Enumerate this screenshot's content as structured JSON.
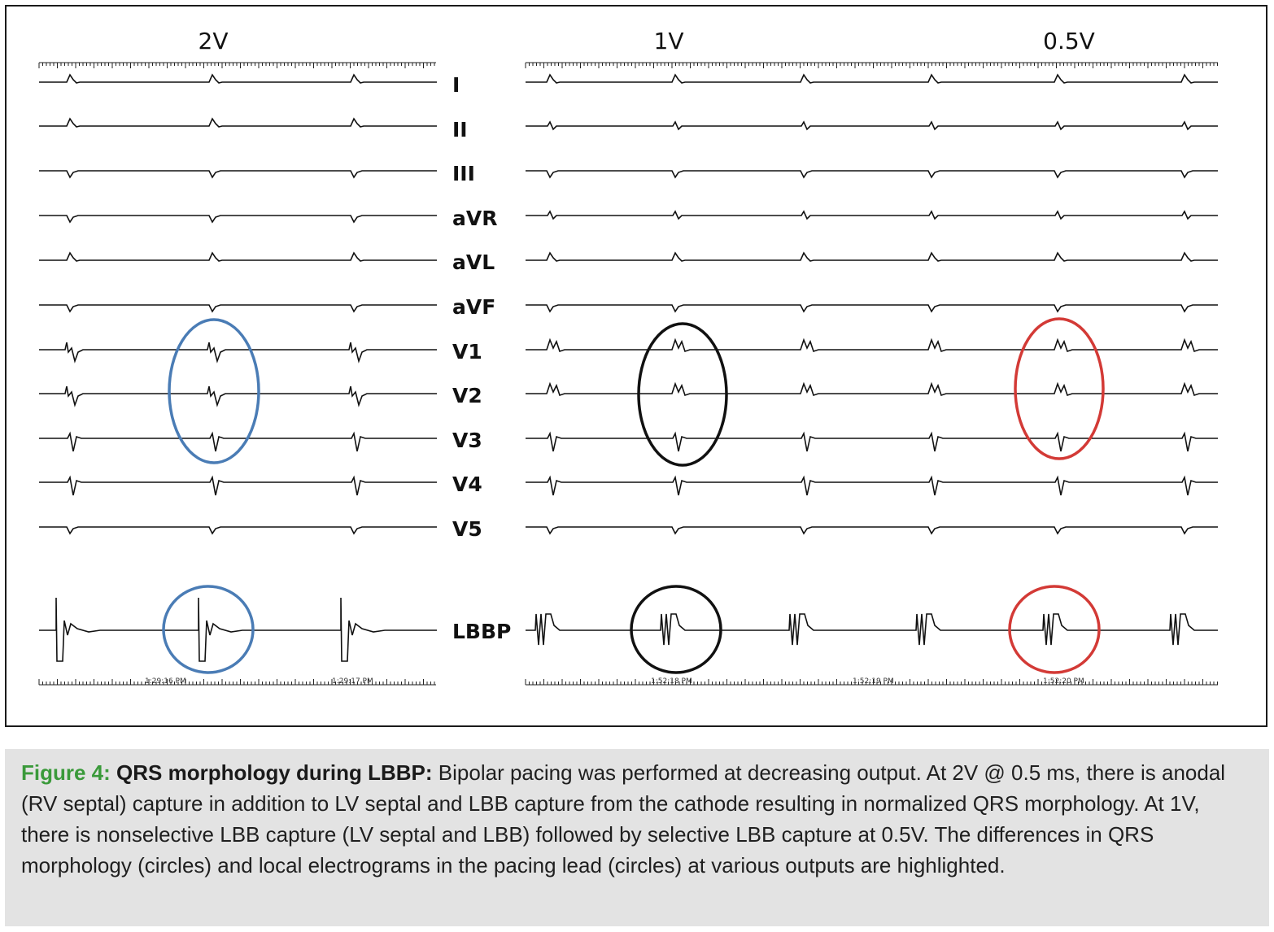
{
  "panels": [
    {
      "id": "left",
      "voltage_labels": [
        "2V"
      ],
      "timestamps": [
        "1:29:16 PM",
        "1:29:17 PM"
      ]
    },
    {
      "id": "right",
      "voltage_labels": [
        "1V",
        "0.5V"
      ],
      "timestamps": [
        "1:52:18 PM",
        "1:52:19 PM",
        "1:52:20 PM"
      ]
    }
  ],
  "leads": [
    "I",
    "II",
    "III",
    "aVR",
    "aVL",
    "aVF",
    "V1",
    "V2",
    "V3",
    "V4",
    "V5",
    "LBBP"
  ],
  "circles": [
    {
      "region": "2V surface leads V1-V3",
      "color": "#4a7cb5"
    },
    {
      "region": "2V LBBP electrogram",
      "color": "#4a7cb5"
    },
    {
      "region": "1V surface leads V1-V3",
      "color": "#111111"
    },
    {
      "region": "1V LBBP electrogram",
      "color": "#111111"
    },
    {
      "region": "0.5V surface leads V1-V3",
      "color": "#d33a36"
    },
    {
      "region": "0.5V LBBP electrogram",
      "color": "#d33a36"
    }
  ],
  "caption": {
    "label": "Figure 4:",
    "title": "QRS morphology during LBBP:",
    "text": "Bipolar pacing was performed at decreasing output. At 2V @ 0.5 ms, there is anodal (RV septal) capture in addition to LV septal and LBB capture from the cathode resulting in normalized QRS morphology. At 1V, there is nonselective LBB capture (LV septal and LBB) followed by selective LBB capture at 0.5V. The differences in QRS morphology (circles) and local electrograms in the pacing lead (circles) at various outputs are highlighted."
  },
  "colors": {
    "caption_label": "#3a9a3a",
    "caption_bg": "#e3e3e3",
    "blue": "#4a7cb5",
    "red": "#d33a36",
    "black": "#111111"
  }
}
